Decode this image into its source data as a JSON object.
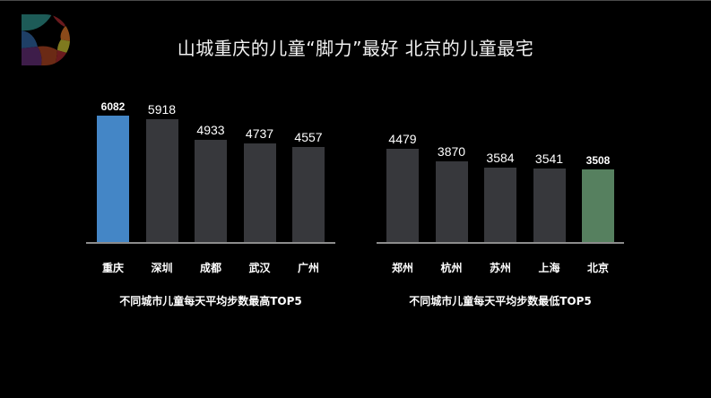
{
  "title": "山城重庆的儿童“脚力”最好  北京的儿童最宅",
  "colors": {
    "highlight_high": "#4486C6",
    "default_bar": "#37383C",
    "highlight_low": "#56805F",
    "baseline": "#8C8C8C",
    "background": "#000000"
  },
  "chart_data": [
    {
      "type": "bar",
      "title": "不同城市儿童每天平均步数最高TOP5",
      "categories": [
        "重庆",
        "深圳",
        "成都",
        "武汉",
        "广州"
      ],
      "values": [
        6082,
        5918,
        4933,
        4737,
        4557
      ],
      "labels": [
        "6082",
        "5918",
        "4933",
        "4737",
        "4557"
      ],
      "highlight_index": 0,
      "xlabel": "",
      "ylabel": "",
      "grid": false,
      "legend": null
    },
    {
      "type": "bar",
      "title": "不同城市儿童每天平均步数最低TOP5",
      "categories": [
        "郑州",
        "杭州",
        "苏州",
        "上海",
        "北京"
      ],
      "values": [
        4479,
        3870,
        3584,
        3541,
        3508
      ],
      "labels": [
        "4479",
        "3870",
        "3584",
        "3541",
        "3508"
      ],
      "highlight_index": 4,
      "xlabel": "",
      "ylabel": "",
      "grid": false,
      "legend": null
    }
  ]
}
